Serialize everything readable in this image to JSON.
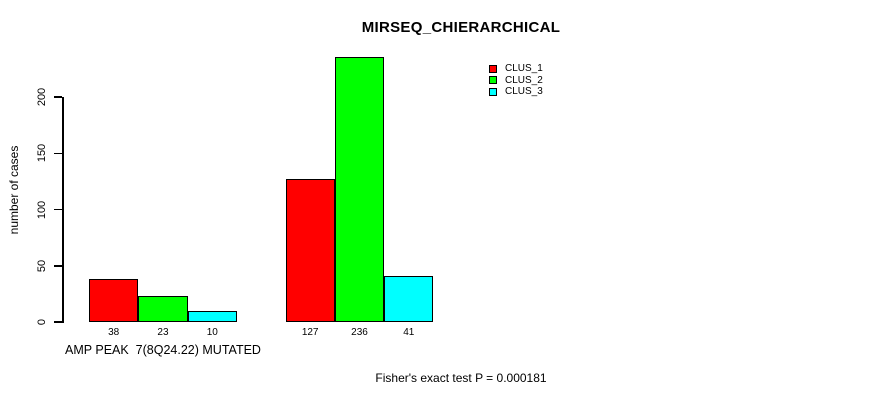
{
  "title": "MIRSEQ_CHIERARCHICAL",
  "y_axis": {
    "label": "number of cases",
    "ticks": [
      "0",
      "50",
      "100",
      "150",
      "200"
    ]
  },
  "x_axis": {
    "group_labels": [
      "AMP PEAK  7(8Q24.22) MUTATED",
      ""
    ]
  },
  "footer": "Fisher's exact test P = 0.000181",
  "legend": {
    "items": [
      {
        "label": "CLUS_1",
        "color": "#FF0000"
      },
      {
        "label": "CLUS_2",
        "color": "#00FF00"
      },
      {
        "label": "CLUS_3",
        "color": "#00FFFF"
      }
    ]
  },
  "chart_data": {
    "type": "bar",
    "title": "MIRSEQ_CHIERARCHICAL",
    "categories": [
      "AMP PEAK  7(8Q24.22) MUTATED",
      ""
    ],
    "series": [
      {
        "name": "CLUS_1",
        "color": "#FF0000",
        "values": [
          38,
          127
        ]
      },
      {
        "name": "CLUS_2",
        "color": "#00FF00",
        "values": [
          23,
          236
        ]
      },
      {
        "name": "CLUS_3",
        "color": "#00FFFF",
        "values": [
          10,
          41
        ]
      }
    ],
    "bar_value_labels": [
      [
        38,
        23,
        10
      ],
      [
        127,
        236,
        41
      ]
    ],
    "xlabel": "",
    "ylabel": "number of cases",
    "ylim": [
      0,
      240
    ],
    "yticks": [
      0,
      50,
      100,
      150,
      200
    ],
    "grid": false,
    "legend_position": "top-right",
    "annotation": "Fisher's exact test P = 0.000181"
  }
}
